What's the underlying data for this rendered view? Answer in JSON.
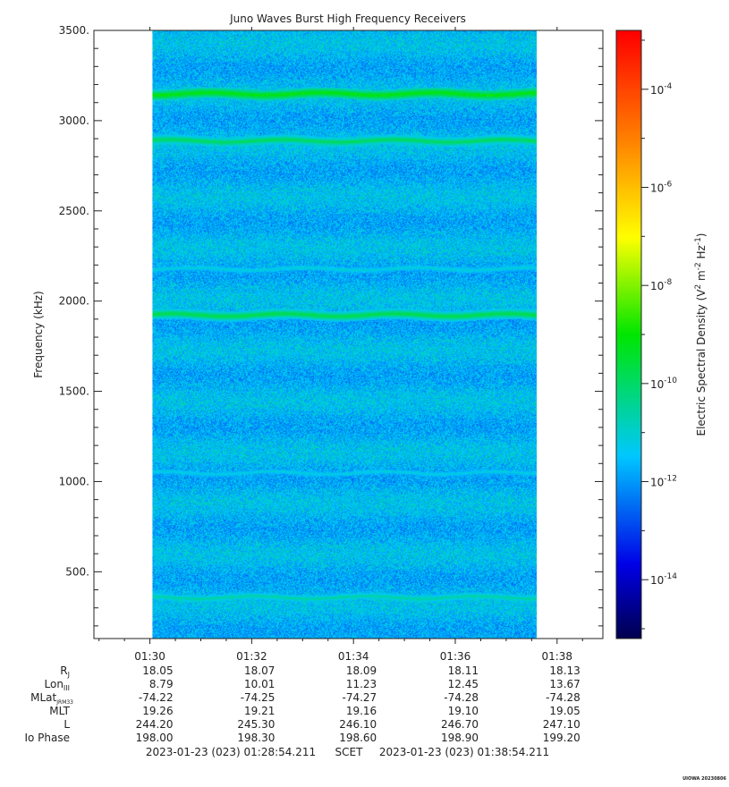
{
  "chart_data": {
    "type": "heatmap",
    "title": "Juno Waves Burst High Frequency Receivers",
    "ylabel": "Frequency (kHz)",
    "ylim": [
      130,
      3500
    ],
    "yticks": [
      "500.",
      "1000.",
      "1500.",
      "2000.",
      "2500.",
      "3000.",
      "3500."
    ],
    "ytick_values": [
      500,
      1000,
      1500,
      2000,
      2500,
      3000,
      3500
    ],
    "x_time_range": [
      "01:28:54",
      "01:38:54"
    ],
    "data_time_range": [
      "01:30:03",
      "01:37:36"
    ],
    "xticks": [
      "01:30",
      "01:32",
      "01:34",
      "01:36",
      "01:38"
    ],
    "colorbar": {
      "label_prefix": "Electric Spectral Density (V",
      "label_mid": " m",
      "label_suffix": " Hz",
      "label_close": ")",
      "sup1": "2",
      "sup2": "-2",
      "sup3": "-1",
      "log_range": [
        -15.2,
        -2.8
      ],
      "tick_exponents": [
        "-14",
        "-12",
        "-10",
        "-8",
        "-6",
        "-4"
      ],
      "tick_values": [
        -14,
        -12,
        -10,
        -8,
        -6,
        -4
      ],
      "base": "10"
    },
    "background_log_level": -11.6,
    "emission_lines_khz": [
      {
        "freq": 3150,
        "log_level": -9.0
      },
      {
        "freq": 2890,
        "log_level": -9.8
      },
      {
        "freq": 2180,
        "log_level": -11.0
      },
      {
        "freq": 1925,
        "log_level": -9.6
      },
      {
        "freq": 1050,
        "log_level": -11.1
      },
      {
        "freq": 360,
        "log_level": -10.5
      }
    ],
    "ephemeris": {
      "rows": [
        {
          "label": "R",
          "sub": "J",
          "values": [
            "18.05",
            "18.07",
            "18.09",
            "18.11",
            "18.13"
          ]
        },
        {
          "label": "Lon",
          "sub": "III",
          "values": [
            "8.79",
            "10.01",
            "11.23",
            "12.45",
            "13.67"
          ]
        },
        {
          "label": "MLat",
          "sub": "JRM33",
          "values": [
            "-74.22",
            "-74.25",
            "-74.27",
            "-74.28",
            "-74.28"
          ]
        },
        {
          "label": "MLT",
          "sub": "",
          "values": [
            "19.26",
            "19.21",
            "19.16",
            "19.10",
            "19.05"
          ]
        },
        {
          "label": "L",
          "sub": "",
          "values": [
            "244.20",
            "245.30",
            "246.10",
            "246.70",
            "247.10"
          ]
        },
        {
          "label": "Io Phase",
          "sub": "",
          "values": [
            "198.00",
            "198.30",
            "198.60",
            "198.90",
            "199.20"
          ]
        }
      ]
    },
    "time_footer": {
      "start": "2023-01-23 (023) 01:28:54.211",
      "scet": "SCET",
      "end": "2023-01-23 (023) 01:38:54.211"
    },
    "credit": "UIOWA 20230806"
  }
}
